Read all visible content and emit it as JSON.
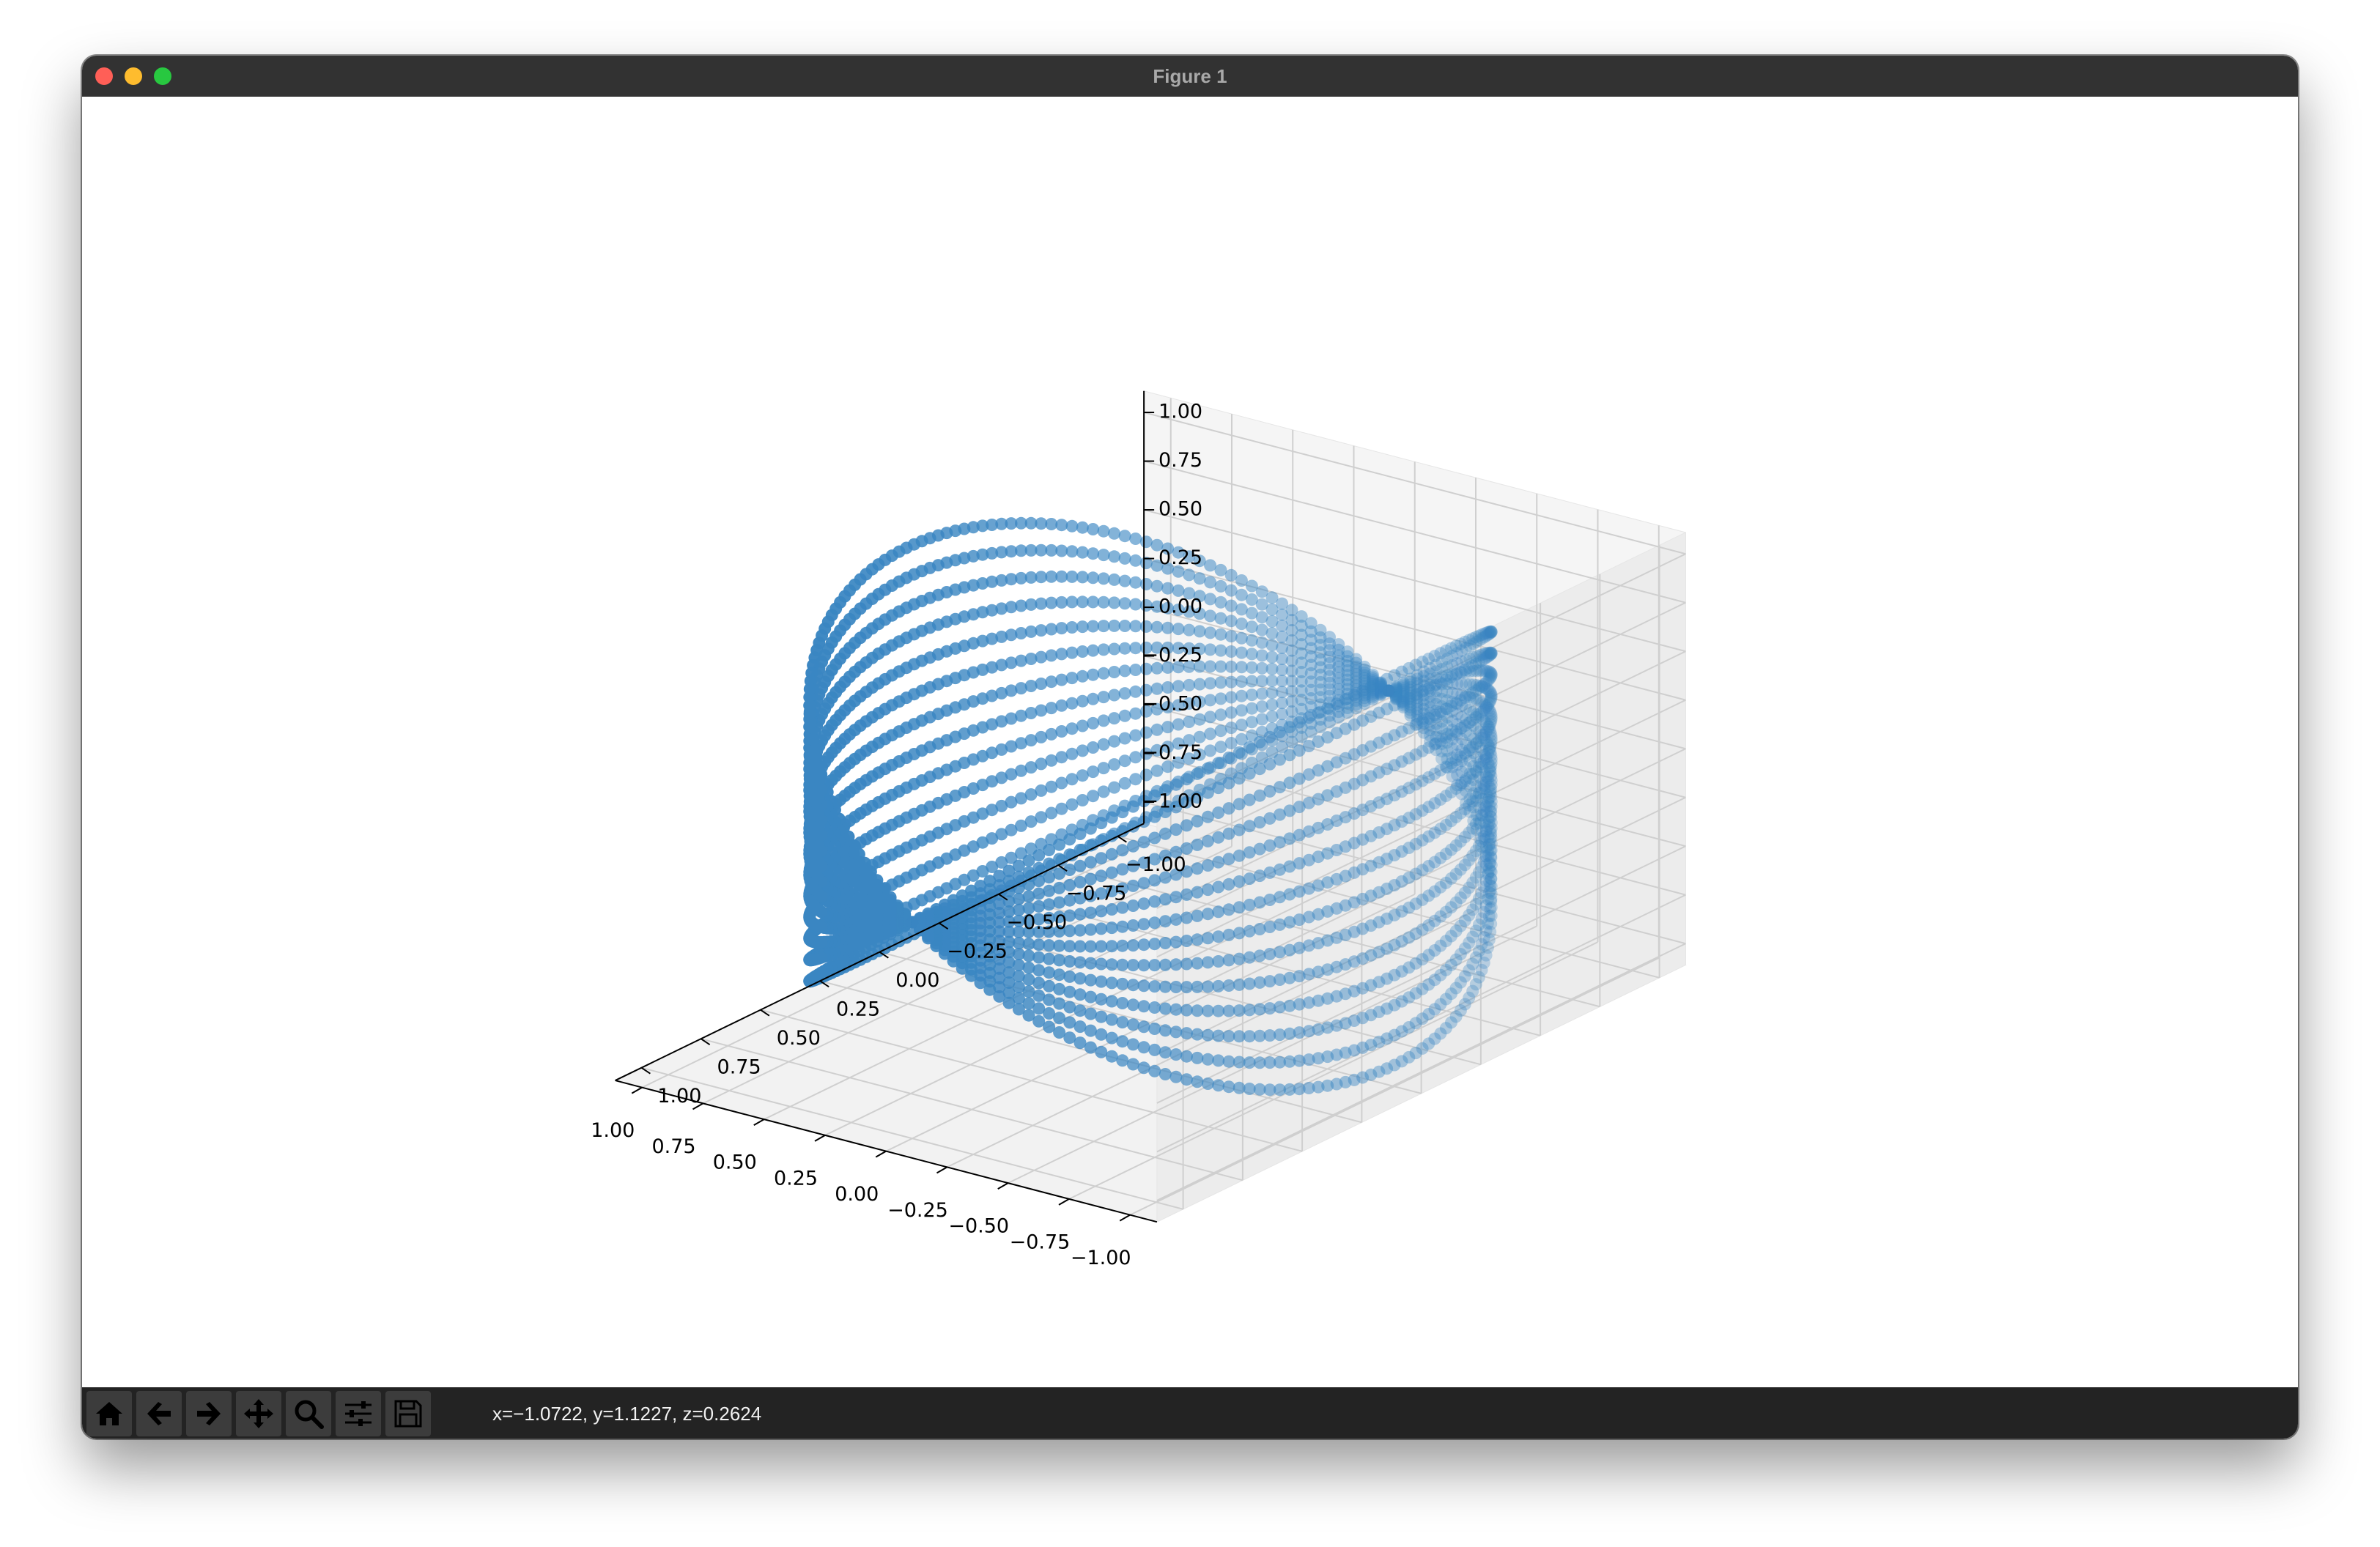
{
  "window": {
    "title": "Figure 1",
    "traffic_colors": {
      "close": "#ff5f57",
      "minimize": "#febc2e",
      "zoom": "#28c840"
    }
  },
  "toolbar": {
    "buttons": [
      {
        "name": "home-button",
        "icon": "home-icon"
      },
      {
        "name": "back-button",
        "icon": "arrow-left-icon"
      },
      {
        "name": "forward-button",
        "icon": "arrow-right-icon"
      },
      {
        "name": "pan-button",
        "icon": "move-icon"
      },
      {
        "name": "zoom-button",
        "icon": "magnifier-icon"
      },
      {
        "name": "configure-subplots-button",
        "icon": "sliders-icon"
      },
      {
        "name": "save-button",
        "icon": "floppy-disk-icon"
      }
    ],
    "coordinates": "x=−1.0722, y=1.1227, z=0.2624"
  },
  "chart_data": {
    "type": "scatter",
    "projection": "3d",
    "marker_color": "#3a86c2",
    "grid": true,
    "axes": {
      "x": {
        "range": [
          -1.0,
          1.0
        ],
        "ticks": [
          "1.00",
          "0.75",
          "0.50",
          "0.25",
          "0.00",
          "−0.25",
          "−0.50",
          "−0.75",
          "−1.00"
        ]
      },
      "y": {
        "range": [
          -1.0,
          1.0
        ],
        "ticks": [
          "1.00",
          "0.75",
          "0.50",
          "0.25",
          "0.00",
          "−0.25",
          "−0.50",
          "−0.75",
          "−1.00"
        ]
      },
      "z": {
        "range": [
          -1.0,
          1.0
        ],
        "ticks": [
          "1.00",
          "0.75",
          "0.50",
          "0.25",
          "0.00",
          "−0.25",
          "−0.50",
          "−0.75",
          "−1.00"
        ]
      }
    },
    "surface": {
      "shape": "twisted band around a unit circle in the x-y plane",
      "x": "cos(u)",
      "y": "sin(u)",
      "z": "v * cos(u)",
      "u_range": [
        0,
        6.2832
      ],
      "v_range": [
        -1,
        1
      ],
      "strands": 14,
      "points_per_strand": 200
    }
  }
}
